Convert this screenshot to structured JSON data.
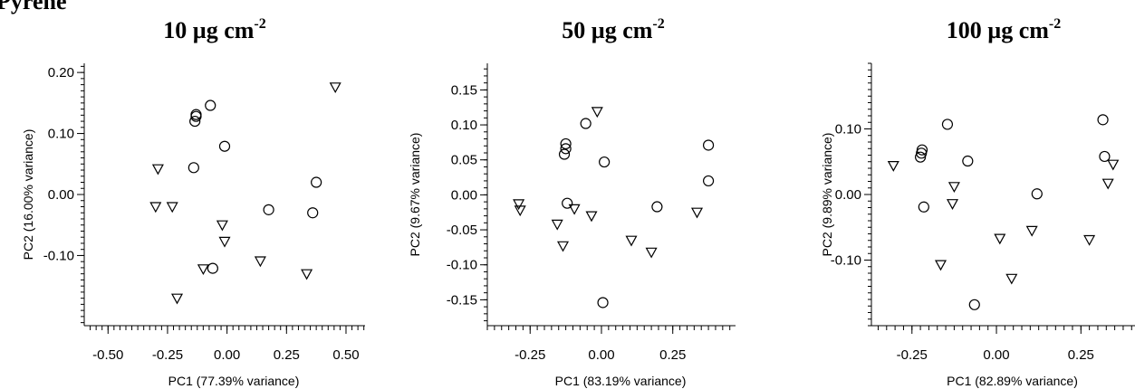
{
  "figure_label": "Pyrene",
  "chart_data": [
    {
      "type": "scatter",
      "title_main": "10 µg cm",
      "title_sup": "-2",
      "xlabel": "PC1 (77.39% variance)",
      "ylabel": "PC2 (16.00% variance)",
      "xlim": [
        -0.6,
        0.58
      ],
      "ylim": [
        -0.215,
        0.215
      ],
      "xticks": [
        -0.5,
        -0.25,
        0.0,
        0.25,
        0.5
      ],
      "xtick_labels": [
        "-0.50",
        "-0.25",
        "0.00",
        "0.25",
        "0.50"
      ],
      "yticks": [
        0.2,
        0.1,
        0.0,
        -0.1
      ],
      "ytick_labels": [
        "0.20",
        "0.10",
        "0.00",
        "-0.10"
      ],
      "series": [
        {
          "marker": "circle",
          "points": [
            [
              -0.07,
              0.146
            ],
            [
              -0.13,
              0.131
            ],
            [
              -0.13,
              0.128
            ],
            [
              -0.135,
              0.12
            ],
            [
              -0.01,
              0.079
            ],
            [
              -0.14,
              0.044
            ],
            [
              0.375,
              0.02
            ],
            [
              0.175,
              -0.025
            ],
            [
              0.36,
              -0.03
            ],
            [
              -0.06,
              -0.121
            ]
          ]
        },
        {
          "marker": "triangle-down",
          "points": [
            [
              0.455,
              0.176
            ],
            [
              -0.29,
              0.042
            ],
            [
              -0.3,
              -0.02
            ],
            [
              -0.23,
              -0.02
            ],
            [
              -0.02,
              -0.05
            ],
            [
              -0.01,
              -0.077
            ],
            [
              -0.1,
              -0.122
            ],
            [
              0.14,
              -0.109
            ],
            [
              0.335,
              -0.13
            ],
            [
              -0.21,
              -0.17
            ]
          ]
        }
      ]
    },
    {
      "type": "scatter",
      "title_main": "50 µg cm",
      "title_sup": "-2",
      "xlabel": "PC1 (83.19% variance)",
      "ylabel": "PC2 (9.67% variance)",
      "xlim": [
        -0.4,
        0.47
      ],
      "ylim": [
        -0.187,
        0.188
      ],
      "xticks": [
        -0.25,
        0.0,
        0.25
      ],
      "xtick_labels": [
        "-0.25",
        "0.00",
        "0.25"
      ],
      "yticks": [
        0.15,
        0.1,
        0.05,
        0.0,
        -0.05,
        -0.1,
        -0.15
      ],
      "ytick_labels": [
        "0.15",
        "0.10",
        "0.05",
        "0.00",
        "-0.05",
        "-0.10",
        "-0.15"
      ],
      "series": [
        {
          "marker": "circle",
          "points": [
            [
              -0.055,
              0.102
            ],
            [
              -0.125,
              0.073
            ],
            [
              -0.125,
              0.066
            ],
            [
              -0.13,
              0.058
            ],
            [
              0.01,
              0.047
            ],
            [
              0.375,
              0.071
            ],
            [
              0.375,
              0.02
            ],
            [
              -0.12,
              -0.012
            ],
            [
              0.195,
              -0.017
            ],
            [
              0.005,
              -0.154
            ]
          ]
        },
        {
          "marker": "triangle-down",
          "points": [
            [
              -0.015,
              0.119
            ],
            [
              -0.29,
              -0.013
            ],
            [
              -0.285,
              -0.022
            ],
            [
              -0.095,
              -0.02
            ],
            [
              -0.035,
              -0.03
            ],
            [
              -0.155,
              -0.042
            ],
            [
              -0.135,
              -0.073
            ],
            [
              0.105,
              -0.065
            ],
            [
              0.175,
              -0.082
            ],
            [
              0.335,
              -0.025
            ]
          ]
        }
      ]
    },
    {
      "type": "scatter",
      "title_main": "100 µg cm",
      "title_sup": "-2",
      "xlabel": "PC1 (82.89% variance)",
      "ylabel": "PC2 (9.89% variance)",
      "xlim": [
        -0.37,
        0.41
      ],
      "ylim": [
        -0.2,
        0.2
      ],
      "xticks": [
        -0.25,
        0.0,
        0.25
      ],
      "xtick_labels": [
        "-0.25",
        "0.00",
        "0.25"
      ],
      "yticks": [
        0.1,
        0.0,
        -0.1
      ],
      "ytick_labels": [
        "0.10",
        "0.00",
        "-0.10"
      ],
      "series": [
        {
          "marker": "circle",
          "points": [
            [
              -0.22,
              0.068
            ],
            [
              -0.222,
              0.063
            ],
            [
              -0.225,
              0.057
            ],
            [
              -0.145,
              0.107
            ],
            [
              -0.085,
              0.051
            ],
            [
              -0.215,
              -0.019
            ],
            [
              0.12,
              0.001
            ],
            [
              0.315,
              0.114
            ],
            [
              0.32,
              0.058
            ],
            [
              -0.065,
              -0.168
            ]
          ]
        },
        {
          "marker": "triangle-down",
          "points": [
            [
              -0.305,
              0.044
            ],
            [
              -0.125,
              0.012
            ],
            [
              -0.13,
              -0.014
            ],
            [
              -0.165,
              -0.107
            ],
            [
              0.01,
              -0.067
            ],
            [
              0.045,
              -0.128
            ],
            [
              0.105,
              -0.055
            ],
            [
              0.275,
              -0.069
            ],
            [
              0.33,
              0.017
            ],
            [
              0.345,
              0.046
            ]
          ]
        }
      ]
    }
  ]
}
